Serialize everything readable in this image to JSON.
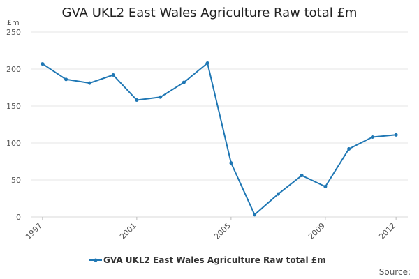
{
  "chart_data": {
    "type": "line",
    "title": "GVA UKL2 East Wales Agriculture Raw total £m",
    "ylabel": "£m",
    "xlabel": "",
    "ylim": [
      0,
      250
    ],
    "yticks": [
      0,
      50,
      100,
      150,
      200,
      250
    ],
    "xtick_labels": [
      "1997",
      "2001",
      "2005",
      "2009",
      "2012"
    ],
    "x": [
      1997,
      1998,
      1999,
      2000,
      2001,
      2002,
      2003,
      2004,
      2005,
      2006,
      2007,
      2008,
      2009,
      2010,
      2011,
      2012
    ],
    "series": [
      {
        "name": "GVA UKL2 East Wales Agriculture Raw total £m",
        "color": "#1f77b4",
        "values": [
          207,
          186,
          181,
          192,
          158,
          162,
          182,
          208,
          73,
          3,
          31,
          56,
          41,
          92,
          108,
          111
        ]
      }
    ],
    "grid": true,
    "legend_position": "bottom"
  },
  "source": {
    "label": "Source:"
  }
}
